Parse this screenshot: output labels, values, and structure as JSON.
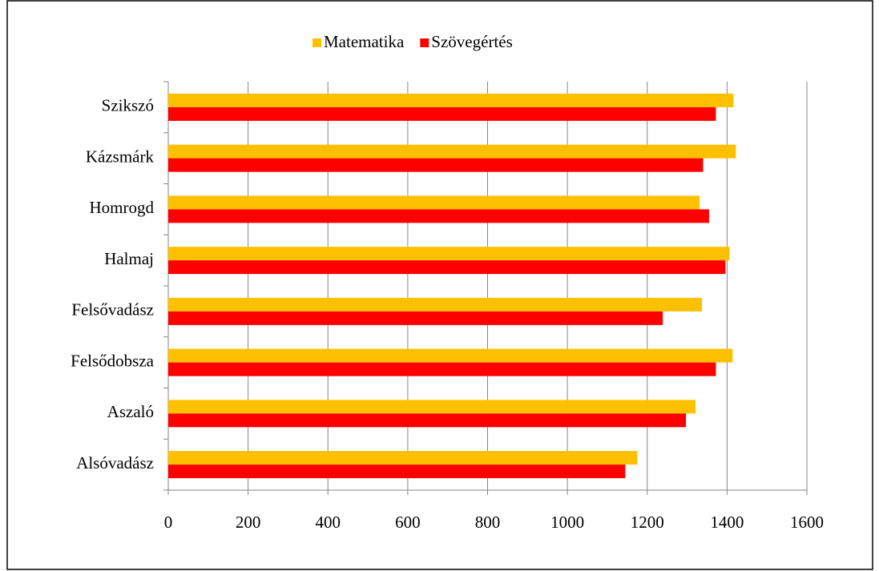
{
  "chart_data": {
    "type": "hbar",
    "categories": [
      "Szikszó",
      "Kázsmárk",
      "Homrogd",
      "Halmaj",
      "Felsővadász",
      "Felsődobsza",
      "Aszaló",
      "Alsóvadász"
    ],
    "series": [
      {
        "name": "Matematika",
        "color": "#FFC000",
        "values": [
          1416,
          1422,
          1331,
          1406,
          1337,
          1414,
          1321,
          1175
        ]
      },
      {
        "name": "Szövegértés",
        "color": "#FF0000",
        "values": [
          1372,
          1340,
          1355,
          1396,
          1239,
          1372,
          1297,
          1145
        ]
      }
    ],
    "xlim": [
      0,
      1600
    ],
    "xticks": [
      0,
      200,
      400,
      600,
      800,
      1000,
      1200,
      1400,
      1600
    ],
    "grid": true,
    "legend": "top"
  }
}
